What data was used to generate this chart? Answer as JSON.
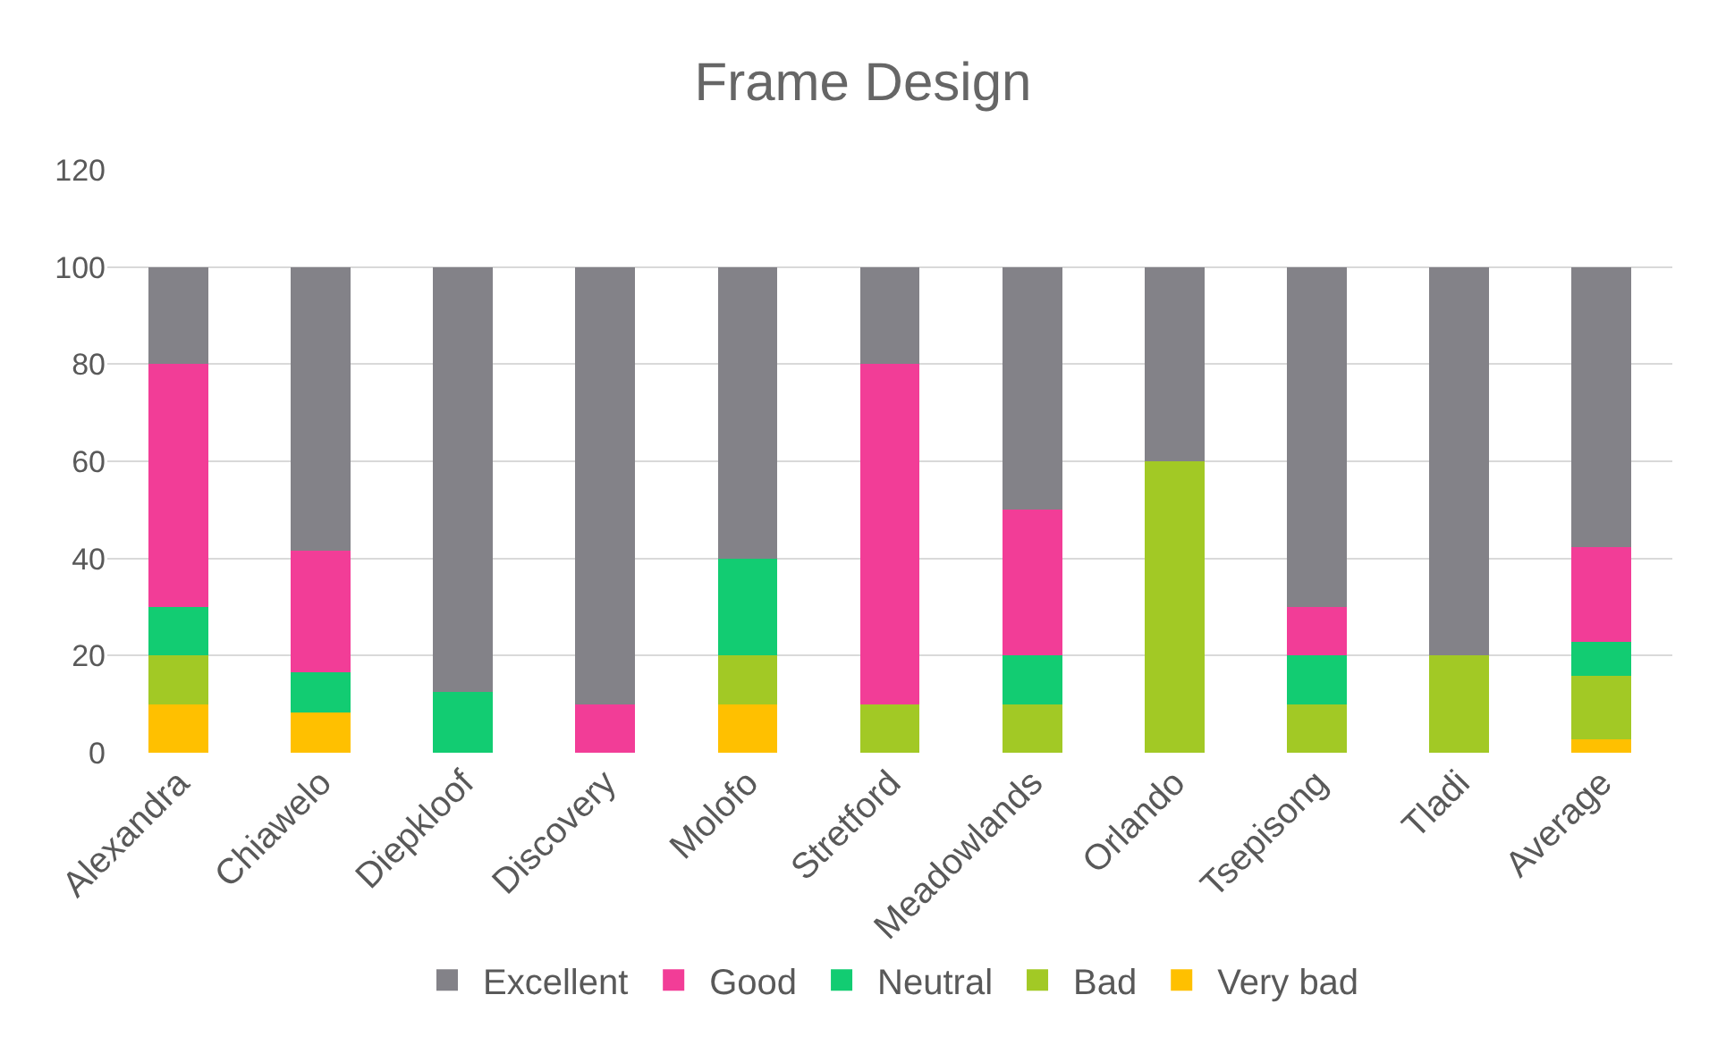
{
  "chart_data": {
    "type": "bar",
    "title": "Frame Design",
    "stacked": true,
    "categories": [
      "Alexandra",
      "Chiawelo",
      "Diepkloof",
      "Discovery",
      "Molofo",
      "Stretford",
      "Meadowlands",
      "Orlando",
      "Tsepisong",
      "Tladi",
      "Average"
    ],
    "series": [
      {
        "name": "Very bad",
        "color": "#ffc000",
        "values": [
          10,
          8.3,
          0,
          0,
          10,
          0,
          0,
          0,
          0,
          0,
          2.8
        ]
      },
      {
        "name": "Bad",
        "color": "#a2c925",
        "values": [
          10,
          0,
          0,
          0,
          10,
          10,
          10,
          60,
          10,
          20,
          13
        ]
      },
      {
        "name": "Neutral",
        "color": "#12cc72",
        "values": [
          10,
          8.3,
          12.5,
          0,
          20,
          0,
          10,
          0,
          10,
          0,
          7.1
        ]
      },
      {
        "name": "Good",
        "color": "#f23d97",
        "values": [
          50,
          25,
          0,
          10,
          0,
          70,
          30,
          0,
          10,
          0,
          19.5
        ]
      },
      {
        "name": "Excellent",
        "color": "#838288",
        "values": [
          20,
          58.4,
          87.5,
          90,
          60,
          20,
          50,
          40,
          70,
          80,
          57.6
        ]
      }
    ],
    "ylim": [
      0,
      120
    ],
    "yticks": [
      0,
      20,
      40,
      60,
      80,
      100,
      120
    ],
    "grid": "y",
    "legend": "bottom"
  }
}
